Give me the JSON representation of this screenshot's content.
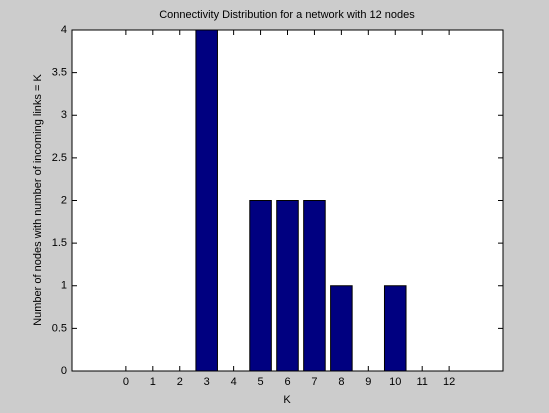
{
  "chart_data": {
    "type": "bar",
    "title": "Connectivity Distribution for a network with 12 nodes",
    "x_label": "K",
    "y_label": "Number of nodes with number of incoming links = K",
    "x": [
      0,
      1,
      2,
      3,
      4,
      5,
      6,
      7,
      8,
      9,
      10,
      11,
      12
    ],
    "values": [
      0,
      0,
      0,
      4,
      0,
      2,
      2,
      2,
      1,
      0,
      1,
      0,
      0
    ],
    "color": "#000080",
    "xlim": [
      -2,
      14
    ],
    "xticks": [
      0,
      1,
      2,
      3,
      4,
      5,
      6,
      7,
      8,
      9,
      10,
      11,
      12
    ],
    "ylim": [
      0,
      4
    ],
    "yticks": [
      0,
      0.5,
      1,
      1.5,
      2,
      2.5,
      3,
      3.5,
      4
    ]
  }
}
